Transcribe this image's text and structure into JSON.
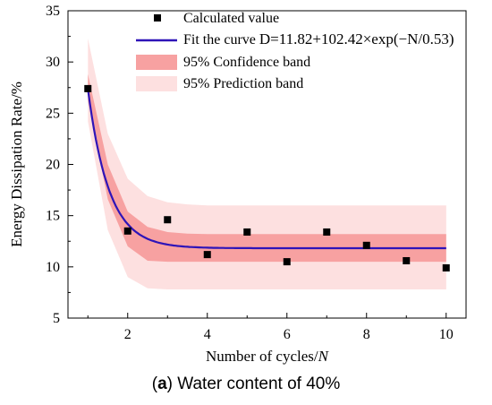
{
  "chart_data": {
    "type": "scatter",
    "xlabel": "Number of cycles/",
    "xlabel_var": "N",
    "ylabel": "Energy Dissipation Rate/%",
    "xlim": [
      0.5,
      10.5
    ],
    "ylim": [
      5,
      35
    ],
    "xticks": [
      2,
      4,
      6,
      8,
      10
    ],
    "yticks": [
      5,
      10,
      15,
      20,
      25,
      30,
      35
    ],
    "grid": false,
    "legend_position": "top-right",
    "series": [
      {
        "name": "Calculated value",
        "kind": "points",
        "color": "#000000",
        "x": [
          1,
          2,
          3,
          4,
          5,
          6,
          7,
          8,
          9,
          10
        ],
        "y": [
          27.4,
          13.5,
          14.6,
          11.2,
          13.4,
          10.5,
          13.4,
          12.1,
          10.6,
          9.9
        ]
      },
      {
        "name": "Fit the curve",
        "kind": "fit",
        "color": "#2e14b8",
        "equation": "D=11.82+102.42×exp(−N/0.53)",
        "params": {
          "a": 11.82,
          "b": 102.42,
          "t": 0.53
        }
      },
      {
        "name": "95% Confidence band",
        "kind": "band",
        "color": "#f7a1a1",
        "x": [
          1.0,
          1.5,
          2.0,
          2.5,
          3.0,
          3.5,
          4.0,
          5.0,
          6.0,
          7.0,
          8.0,
          9.0,
          10.0
        ],
        "upper": [
          28.8,
          20.0,
          15.4,
          13.9,
          13.4,
          13.25,
          13.2,
          13.2,
          13.2,
          13.2,
          13.2,
          13.2,
          13.2
        ],
        "lower": [
          26.2,
          16.6,
          12.0,
          10.6,
          10.5,
          10.5,
          10.5,
          10.5,
          10.5,
          10.5,
          10.5,
          10.5,
          10.5
        ]
      },
      {
        "name": "95% Prediction band",
        "kind": "band",
        "color": "#fde0e0",
        "x": [
          1.0,
          1.5,
          2.0,
          2.5,
          3.0,
          3.5,
          4.0,
          5.0,
          6.0,
          7.0,
          8.0,
          9.0,
          10.0
        ],
        "upper": [
          32.3,
          23.0,
          18.6,
          16.9,
          16.3,
          16.1,
          16.0,
          16.0,
          16.0,
          16.0,
          16.0,
          16.0,
          16.0
        ],
        "lower": [
          24.2,
          13.6,
          9.0,
          7.9,
          7.8,
          7.8,
          7.8,
          7.8,
          7.8,
          7.8,
          7.8,
          7.8,
          7.8
        ]
      }
    ]
  },
  "caption": {
    "label": "a",
    "text": " Water content of 40%"
  }
}
